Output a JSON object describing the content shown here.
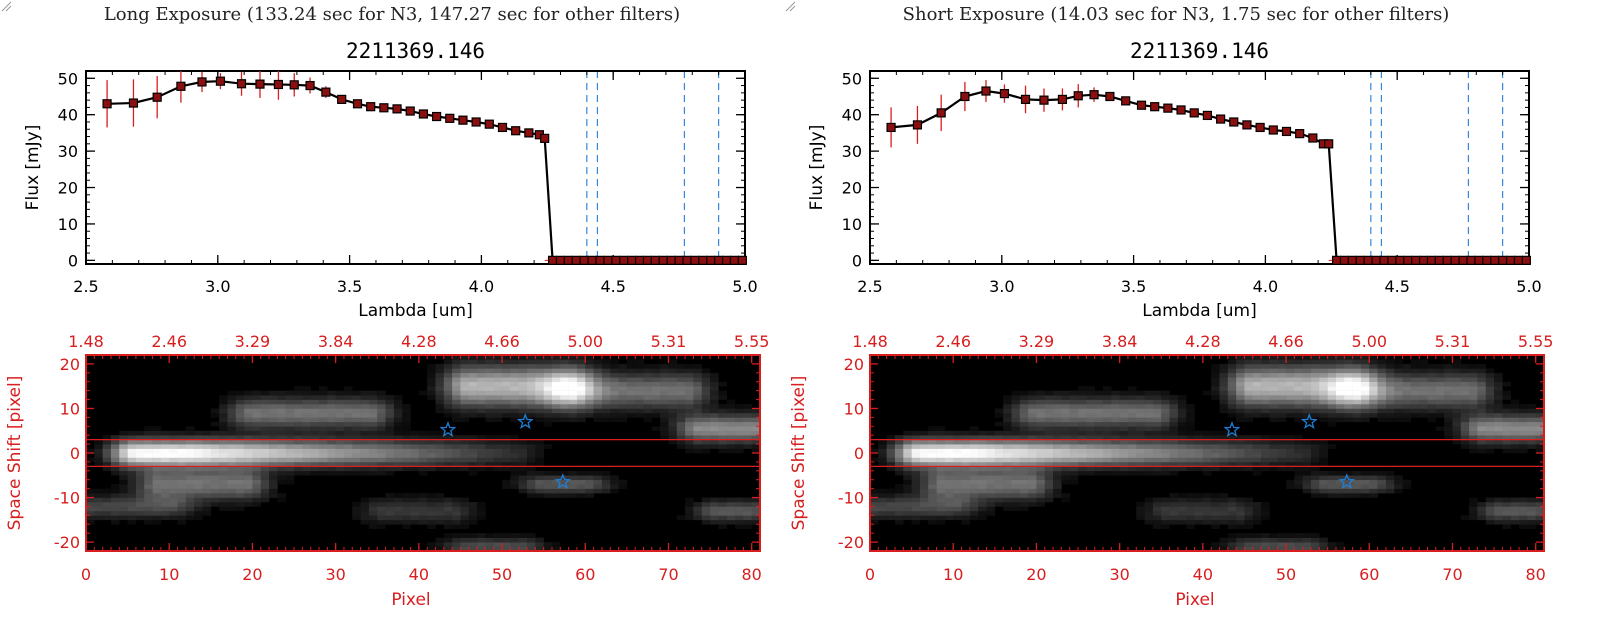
{
  "colors": {
    "red": "#d81e1e",
    "blue": "#1f7fd6",
    "black": "#000000",
    "bg": "#ffffff"
  },
  "panels": [
    {
      "header": "Long Exposure (133.24 sec for N3, 147.27 sec for other filters)",
      "chart_data": {
        "type": "line",
        "title": "2211369.146",
        "xlabel": "Lambda [um]",
        "ylabel": "Flux [mJy]",
        "xlim": [
          2.5,
          5.0
        ],
        "ylim": [
          -1,
          52
        ],
        "xticks": [
          2.5,
          3.0,
          3.5,
          4.0,
          4.5,
          5.0
        ],
        "xtick_labels": [
          "2.5",
          "3.0",
          "3.5",
          "4.0",
          "4.5",
          "5.0"
        ],
        "yticks": [
          0,
          10,
          20,
          30,
          40,
          50
        ],
        "ytick_labels": [
          "0",
          "10",
          "20",
          "30",
          "40",
          "50"
        ],
        "vlines": [
          4.4,
          4.44,
          4.77,
          4.9
        ],
        "series": [
          {
            "name": "flux",
            "x": [
              2.58,
              2.68,
              2.77,
              2.86,
              2.94,
              3.01,
              3.09,
              3.16,
              3.23,
              3.29,
              3.35,
              3.41,
              3.47,
              3.53,
              3.58,
              3.63,
              3.68,
              3.73,
              3.78,
              3.83,
              3.88,
              3.93,
              3.98,
              4.03,
              4.08,
              4.13,
              4.18,
              4.22,
              4.24,
              4.27,
              4.3,
              4.33,
              4.36,
              4.39,
              4.42,
              4.45,
              4.48,
              4.51,
              4.54,
              4.57,
              4.6,
              4.63,
              4.66,
              4.69,
              4.72,
              4.75,
              4.78,
              4.81,
              4.84,
              4.87,
              4.9,
              4.93,
              4.96,
              4.99
            ],
            "y": [
              43.0,
              43.2,
              44.8,
              47.8,
              49.0,
              49.2,
              48.5,
              48.4,
              48.3,
              48.2,
              48.0,
              46.2,
              44.2,
              43.0,
              42.2,
              41.9,
              41.6,
              41.0,
              40.2,
              39.5,
              39.0,
              38.5,
              38.0,
              37.4,
              36.5,
              35.6,
              35.0,
              34.5,
              33.5,
              0,
              0,
              0,
              0,
              0,
              0,
              0,
              0,
              0,
              0,
              0,
              0,
              0,
              0,
              0,
              0,
              0,
              0,
              0,
              0,
              0,
              0,
              0,
              0,
              0
            ],
            "yerr": [
              6.5,
              6.5,
              5.8,
              4.5,
              2.8,
              2.2,
              3.3,
              3.8,
              4.2,
              3.2,
              2.2,
              1.6,
              0.6,
              0.4,
              0.4,
              0.3,
              0.3,
              0.3,
              0.3,
              0.3,
              0.3,
              0.3,
              0.3,
              0.3,
              0.3,
              0.3,
              0.3,
              0.3,
              0.3,
              0,
              0,
              0,
              0,
              0,
              0,
              0,
              0,
              0,
              0,
              0,
              0,
              0,
              0,
              0,
              0,
              0,
              0,
              0,
              0,
              0,
              0,
              0,
              0,
              0
            ]
          }
        ]
      },
      "image_panel": {
        "type": "heatmap",
        "xlabel": "Pixel",
        "ylabel": "Space Shift [pixel]",
        "xlim": [
          0,
          81
        ],
        "ylim": [
          -22,
          22
        ],
        "xticks": [
          0,
          10,
          20,
          30,
          40,
          50,
          60,
          70,
          80
        ],
        "xtick_labels": [
          "0",
          "10",
          "20",
          "30",
          "40",
          "50",
          "60",
          "70",
          "80"
        ],
        "yticks": [
          -20,
          -10,
          0,
          10,
          20
        ],
        "ytick_labels": [
          "-20",
          "-10",
          "0",
          "10",
          "20"
        ],
        "top_tick_labels": [
          "1.48",
          "2.46",
          "3.29",
          "3.84",
          "4.28",
          "4.66",
          "5.00",
          "5.31",
          "5.55"
        ],
        "hlines": [
          3,
          -3
        ],
        "star_markers": [
          [
            43.5,
            5.2
          ],
          [
            52.8,
            7.0
          ],
          [
            57.3,
            -6.5
          ]
        ]
      }
    },
    {
      "header": "Short Exposure (14.03 sec for N3, 1.75 sec for other filters)",
      "chart_data": {
        "type": "line",
        "title": "2211369.146",
        "xlabel": "Lambda [um]",
        "ylabel": "Flux [mJy]",
        "xlim": [
          2.5,
          5.0
        ],
        "ylim": [
          -1,
          52
        ],
        "xticks": [
          2.5,
          3.0,
          3.5,
          4.0,
          4.5,
          5.0
        ],
        "xtick_labels": [
          "2.5",
          "3.0",
          "3.5",
          "4.0",
          "4.5",
          "5.0"
        ],
        "yticks": [
          0,
          10,
          20,
          30,
          40,
          50
        ],
        "ytick_labels": [
          "0",
          "10",
          "20",
          "30",
          "40",
          "50"
        ],
        "vlines": [
          4.4,
          4.44,
          4.77,
          4.9
        ],
        "series": [
          {
            "name": "flux",
            "x": [
              2.58,
              2.68,
              2.77,
              2.86,
              2.94,
              3.01,
              3.09,
              3.16,
              3.23,
              3.29,
              3.35,
              3.41,
              3.47,
              3.53,
              3.58,
              3.63,
              3.68,
              3.73,
              3.78,
              3.83,
              3.88,
              3.93,
              3.98,
              4.03,
              4.08,
              4.13,
              4.18,
              4.22,
              4.24,
              4.27,
              4.3,
              4.33,
              4.36,
              4.39,
              4.42,
              4.45,
              4.48,
              4.51,
              4.54,
              4.57,
              4.6,
              4.63,
              4.66,
              4.69,
              4.72,
              4.75,
              4.78,
              4.81,
              4.84,
              4.87,
              4.9,
              4.93,
              4.96,
              4.99
            ],
            "y": [
              36.5,
              37.2,
              40.5,
              45.0,
              46.5,
              45.8,
              44.2,
              44.0,
              44.2,
              45.2,
              45.5,
              45.0,
              43.8,
              42.6,
              42.2,
              41.8,
              41.3,
              40.5,
              39.8,
              38.8,
              38.0,
              37.2,
              36.5,
              35.8,
              35.4,
              34.8,
              33.6,
              32.0,
              32.0,
              0,
              0,
              0,
              0,
              0,
              0,
              0,
              0,
              0,
              0,
              0,
              0,
              0,
              0,
              0,
              0,
              0,
              0,
              0,
              0,
              0,
              0,
              0,
              0,
              0
            ],
            "yerr": [
              5.5,
              5.2,
              5.0,
              4.0,
              3.0,
              2.5,
              3.8,
              3.2,
              3.0,
              3.2,
              2.0,
              1.2,
              0.6,
              0.4,
              0.4,
              0.3,
              0.3,
              0.3,
              0.3,
              0.3,
              0.3,
              0.3,
              0.3,
              0.3,
              0.3,
              0.3,
              0.3,
              0.3,
              0.3,
              0,
              0,
              0,
              0,
              0,
              0,
              0,
              0,
              0,
              0,
              0,
              0,
              0,
              0,
              0,
              0,
              0,
              0,
              0,
              0,
              0,
              0,
              0,
              0,
              0
            ]
          }
        ]
      },
      "image_panel": {
        "type": "heatmap",
        "xlabel": "Pixel",
        "ylabel": "Space Shift [pixel]",
        "xlim": [
          0,
          81
        ],
        "ylim": [
          -22,
          22
        ],
        "xticks": [
          0,
          10,
          20,
          30,
          40,
          50,
          60,
          70,
          80
        ],
        "xtick_labels": [
          "0",
          "10",
          "20",
          "30",
          "40",
          "50",
          "60",
          "70",
          "80"
        ],
        "yticks": [
          -20,
          -10,
          0,
          10,
          20
        ],
        "ytick_labels": [
          "-20",
          "-10",
          "0",
          "10",
          "20"
        ],
        "top_tick_labels": [
          "1.48",
          "2.46",
          "3.29",
          "3.84",
          "4.28",
          "4.66",
          "5.00",
          "5.31",
          "5.55"
        ],
        "hlines": [
          3,
          -3
        ],
        "star_markers": [
          [
            43.5,
            5.2
          ],
          [
            52.8,
            7.0
          ],
          [
            57.3,
            -6.5
          ]
        ]
      }
    }
  ]
}
